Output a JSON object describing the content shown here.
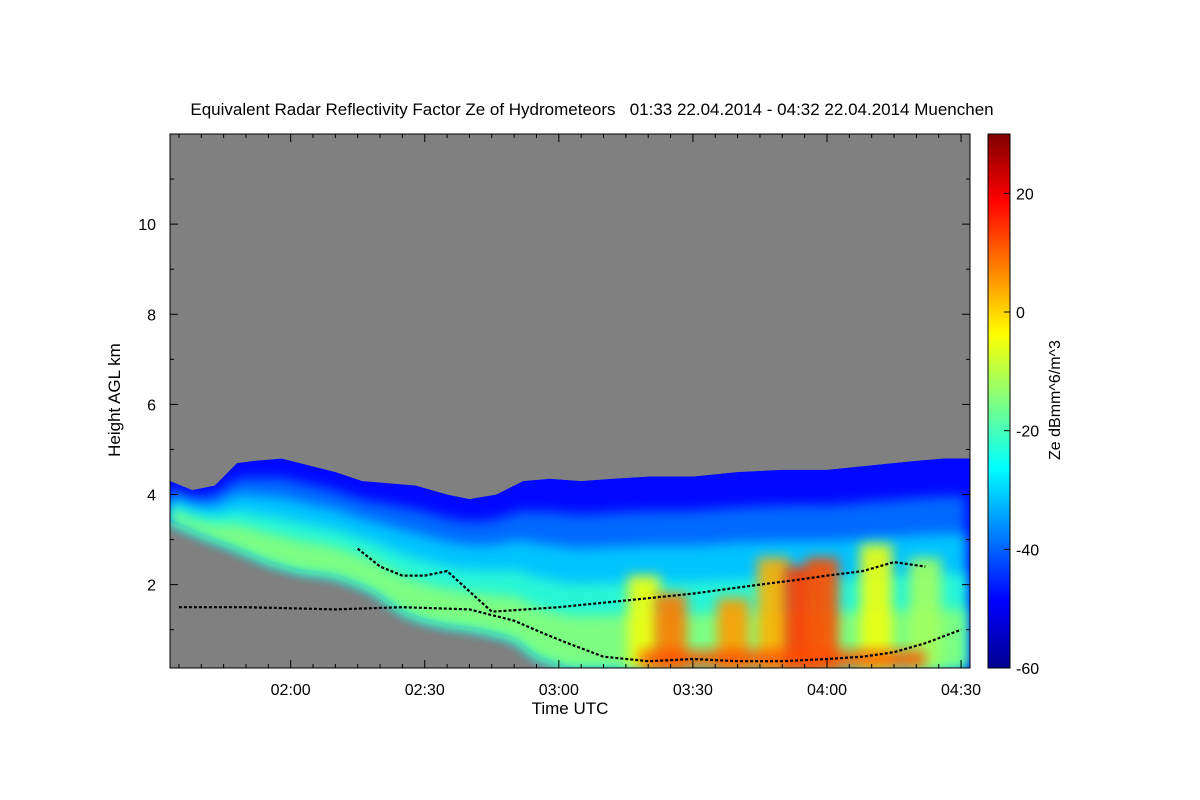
{
  "chart_data": {
    "type": "heatmap",
    "title": "Equivalent Radar Reflectivity Factor Ze of Hydrometeors   01:33 22.04.2014 - 04:32 22.04.2014 Muenchen",
    "xlabel": "Time UTC",
    "ylabel": "Height AGL km",
    "x_range_minutes_utc": [
      93,
      272
    ],
    "xlim": [
      "01:33",
      "04:32"
    ],
    "x_tick_minutes": [
      120,
      150,
      180,
      210,
      240,
      270
    ],
    "x_ticks": [
      "02:00",
      "02:30",
      "03:00",
      "03:30",
      "04:00",
      "04:30"
    ],
    "ylim": [
      0.15,
      12.0
    ],
    "y_tick_values": [
      2,
      4,
      6,
      8,
      10
    ],
    "y_ticks": [
      "2",
      "4",
      "6",
      "8",
      "10"
    ],
    "colorbar": {
      "label": "Ze dBmm^6/m^3",
      "range": [
        -60,
        30
      ],
      "tick_values": [
        -60,
        -40,
        -20,
        0,
        20
      ],
      "ticks": [
        "-60",
        "-40",
        "-20",
        "0",
        "20"
      ],
      "colormap": "jet"
    },
    "background_color": "#808080",
    "echo_top_km": [
      [
        93,
        4.3
      ],
      [
        98,
        4.1
      ],
      [
        103,
        4.2
      ],
      [
        108,
        4.7
      ],
      [
        112,
        4.75
      ],
      [
        118,
        4.8
      ],
      [
        122,
        4.7
      ],
      [
        126,
        4.6
      ],
      [
        130,
        4.5
      ],
      [
        136,
        4.3
      ],
      [
        142,
        4.25
      ],
      [
        148,
        4.2
      ],
      [
        155,
        4.0
      ],
      [
        160,
        3.9
      ],
      [
        166,
        4.0
      ],
      [
        172,
        4.3
      ],
      [
        178,
        4.35
      ],
      [
        185,
        4.3
      ],
      [
        192,
        4.35
      ],
      [
        200,
        4.4
      ],
      [
        210,
        4.4
      ],
      [
        220,
        4.5
      ],
      [
        230,
        4.55
      ],
      [
        240,
        4.55
      ],
      [
        250,
        4.65
      ],
      [
        260,
        4.75
      ],
      [
        266,
        4.8
      ],
      [
        272,
        4.8
      ]
    ],
    "echo_base_km": [
      [
        93,
        3.4
      ],
      [
        100,
        3.1
      ],
      [
        108,
        2.8
      ],
      [
        115,
        2.5
      ],
      [
        122,
        2.3
      ],
      [
        130,
        2.2
      ],
      [
        138,
        1.9
      ],
      [
        145,
        1.4
      ],
      [
        150,
        1.2
      ],
      [
        155,
        1.1
      ],
      [
        162,
        1.0
      ],
      [
        170,
        0.8
      ],
      [
        175,
        0.4
      ],
      [
        182,
        0.15
      ],
      [
        272,
        0.15
      ]
    ],
    "cores": [
      {
        "minute": 199,
        "height_km": 1.6,
        "ze": -5
      },
      {
        "minute": 205,
        "height_km": 1.2,
        "ze": 8
      },
      {
        "minute": 219,
        "height_km": 1.1,
        "ze": 5
      },
      {
        "minute": 228,
        "height_km": 2.0,
        "ze": 3
      },
      {
        "minute": 234,
        "height_km": 1.8,
        "ze": 14
      },
      {
        "minute": 239,
        "height_km": 2.0,
        "ze": 12
      },
      {
        "minute": 251,
        "height_km": 2.3,
        "ze": -5
      },
      {
        "minute": 262,
        "height_km": 2.0,
        "ze": -12
      }
    ],
    "cloud_base_line_km": [
      [
        95,
        1.5
      ],
      [
        110,
        1.5
      ],
      [
        130,
        1.45
      ],
      [
        145,
        1.5
      ],
      [
        160,
        1.45
      ],
      [
        170,
        1.2
      ],
      [
        177,
        0.9
      ],
      [
        182,
        0.7
      ],
      [
        190,
        0.4
      ],
      [
        200,
        0.3
      ],
      [
        210,
        0.35
      ],
      [
        220,
        0.3
      ],
      [
        230,
        0.3
      ],
      [
        240,
        0.35
      ],
      [
        248,
        0.4
      ],
      [
        255,
        0.5
      ],
      [
        262,
        0.7
      ],
      [
        270,
        1.0
      ]
    ],
    "upper_line_km": [
      [
        135,
        2.8
      ],
      [
        140,
        2.4
      ],
      [
        145,
        2.2
      ],
      [
        150,
        2.2
      ],
      [
        155,
        2.3
      ],
      [
        165,
        1.4
      ],
      [
        180,
        1.5
      ],
      [
        190,
        1.6
      ],
      [
        200,
        1.7
      ],
      [
        210,
        1.8
      ],
      [
        225,
        2.0
      ],
      [
        233,
        2.1
      ],
      [
        240,
        2.2
      ],
      [
        248,
        2.3
      ],
      [
        255,
        2.5
      ],
      [
        262,
        2.4
      ]
    ]
  }
}
